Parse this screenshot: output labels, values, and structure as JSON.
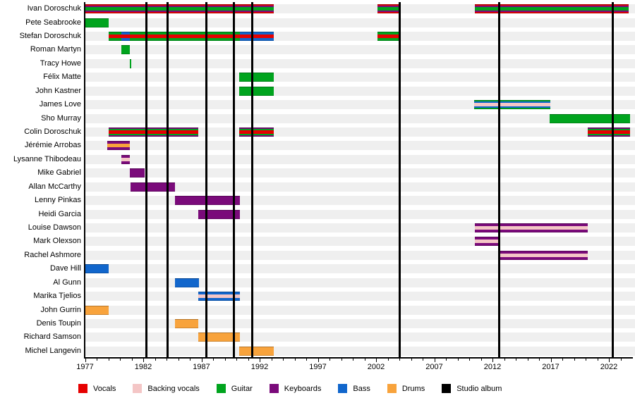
{
  "chart_data": {
    "type": "bar",
    "subtype": "band-members-gantt-timeline",
    "title": "",
    "xlabel": "",
    "ylabel": "",
    "x_axis": {
      "min": 1977,
      "max": 2023.8,
      "major_ticks": [
        1977,
        1982,
        1987,
        1992,
        1997,
        2002,
        2007,
        2012,
        2017,
        2022
      ],
      "minor_tick_interval": 1,
      "grid": false
    },
    "roles": {
      "vocals": "#e60000",
      "backing_vocals": "#f4c6c6",
      "guitar": "#00a41e",
      "keyboards": "#7a0a7a",
      "bass": "#1166cc",
      "drums": "#f8a33c",
      "studio_album": "#000000"
    },
    "members": [
      {
        "name": "Ivan Doroschuk",
        "bars": [
          {
            "start": 1977.0,
            "end": 1993.2,
            "stripes": [
              "vocals",
              "keyboards",
              "guitar"
            ]
          },
          {
            "start": 2002.1,
            "end": 2004.0,
            "stripes": [
              "vocals",
              "keyboards",
              "guitar"
            ]
          },
          {
            "start": 2010.5,
            "end": 2023.7,
            "stripes": [
              "vocals",
              "keyboards",
              "guitar"
            ]
          }
        ]
      },
      {
        "name": "Pete Seabrooke",
        "bars": [
          {
            "start": 1977.0,
            "end": 1979.0,
            "stripes": [
              "guitar"
            ]
          }
        ]
      },
      {
        "name": "Stefan Doroschuk",
        "bars": [
          {
            "start": 1979.0,
            "end": 1980.1,
            "stripes": [
              "guitar",
              "vocals"
            ]
          },
          {
            "start": 1980.1,
            "end": 1980.85,
            "stripes": [
              "bass",
              "vocals"
            ]
          },
          {
            "start": 1980.85,
            "end": 1990.3,
            "stripes": [
              "guitar",
              "vocals"
            ]
          },
          {
            "start": 1990.3,
            "end": 1993.2,
            "stripes": [
              "bass",
              "vocals"
            ]
          },
          {
            "start": 2002.1,
            "end": 2004.0,
            "stripes": [
              "guitar",
              "vocals"
            ]
          }
        ]
      },
      {
        "name": "Roman Martyn",
        "bars": [
          {
            "start": 1980.1,
            "end": 1980.85,
            "stripes": [
              "guitar"
            ]
          }
        ]
      },
      {
        "name": "Tracy Howe",
        "bars": [
          {
            "start": 1980.85,
            "end": 1981.0,
            "stripes": [
              "guitar"
            ]
          }
        ]
      },
      {
        "name": "Félix Matte",
        "bars": [
          {
            "start": 1990.25,
            "end": 1993.2,
            "stripes": [
              "guitar"
            ]
          }
        ]
      },
      {
        "name": "John Kastner",
        "bars": [
          {
            "start": 1990.25,
            "end": 1993.2,
            "stripes": [
              "guitar"
            ]
          }
        ]
      },
      {
        "name": "James Love",
        "bars": [
          {
            "start": 2010.4,
            "end": 2017.0,
            "stripes": [
              "guitar",
              "bass",
              "backing_vocals"
            ]
          }
        ]
      },
      {
        "name": "Sho Murray",
        "bars": [
          {
            "start": 2016.9,
            "end": 2023.8,
            "stripes": [
              "guitar"
            ]
          }
        ]
      },
      {
        "name": "Colin Doroschuk",
        "bars": [
          {
            "start": 1979.0,
            "end": 1986.7,
            "stripes": [
              "keyboards",
              "guitar",
              "vocals"
            ]
          },
          {
            "start": 1990.25,
            "end": 1993.2,
            "stripes": [
              "keyboards",
              "guitar",
              "vocals"
            ]
          },
          {
            "start": 2020.2,
            "end": 2023.8,
            "stripes": [
              "keyboards",
              "guitar",
              "vocals"
            ]
          }
        ]
      },
      {
        "name": "Jérémie Arrobas",
        "bars": [
          {
            "start": 1978.9,
            "end": 1980.85,
            "stripes": [
              "keyboards",
              "drums"
            ]
          }
        ]
      },
      {
        "name": "Lysanne Thibodeau",
        "bars": [
          {
            "start": 1980.1,
            "end": 1980.85,
            "stripes": [
              "keyboards",
              "backing_vocals"
            ]
          }
        ]
      },
      {
        "name": "Mike Gabriel",
        "bars": [
          {
            "start": 1980.85,
            "end": 1982.1,
            "stripes": [
              "keyboards"
            ]
          }
        ]
      },
      {
        "name": "Allan McCarthy",
        "bars": [
          {
            "start": 1980.9,
            "end": 1984.7,
            "stripes": [
              "keyboards"
            ]
          }
        ]
      },
      {
        "name": "Lenny Pinkas",
        "bars": [
          {
            "start": 1984.7,
            "end": 1990.3,
            "stripes": [
              "keyboards"
            ]
          }
        ]
      },
      {
        "name": "Heidi Garcia",
        "bars": [
          {
            "start": 1986.7,
            "end": 1990.3,
            "stripes": [
              "keyboards"
            ]
          }
        ]
      },
      {
        "name": "Louise Dawson",
        "bars": [
          {
            "start": 2010.5,
            "end": 2020.2,
            "stripes": [
              "keyboards",
              "backing_vocals"
            ]
          }
        ]
      },
      {
        "name": "Mark Olexson",
        "bars": [
          {
            "start": 2010.5,
            "end": 2012.55,
            "stripes": [
              "keyboards",
              "backing_vocals"
            ]
          }
        ]
      },
      {
        "name": "Rachel Ashmore",
        "bars": [
          {
            "start": 2012.5,
            "end": 2020.2,
            "stripes": [
              "keyboards",
              "backing_vocals"
            ]
          }
        ]
      },
      {
        "name": "Dave Hill",
        "bars": [
          {
            "start": 1977.0,
            "end": 1979.0,
            "stripes": [
              "bass"
            ]
          }
        ]
      },
      {
        "name": "Al Gunn",
        "bars": [
          {
            "start": 1984.7,
            "end": 1986.8,
            "stripes": [
              "bass"
            ]
          }
        ]
      },
      {
        "name": "Marika Tjelios",
        "bars": [
          {
            "start": 1986.7,
            "end": 1990.3,
            "stripes": [
              "bass",
              "backing_vocals"
            ]
          }
        ]
      },
      {
        "name": "John Gurrin",
        "bars": [
          {
            "start": 1977.0,
            "end": 1979.0,
            "stripes": [
              "drums"
            ]
          }
        ]
      },
      {
        "name": "Denis Toupin",
        "bars": [
          {
            "start": 1984.7,
            "end": 1986.7,
            "stripes": [
              "drums"
            ]
          }
        ]
      },
      {
        "name": "Richard Samson",
        "bars": [
          {
            "start": 1986.7,
            "end": 1990.3,
            "stripes": [
              "drums"
            ]
          }
        ]
      },
      {
        "name": "Michel Langevin",
        "bars": [
          {
            "start": 1990.25,
            "end": 1993.2,
            "stripes": [
              "drums"
            ]
          }
        ]
      }
    ],
    "album_lines": [
      1982.25,
      1984.1,
      1987.45,
      1989.8,
      1991.35,
      2004.0,
      2012.55,
      2022.35
    ],
    "legend": [
      {
        "label": "Vocals",
        "role": "vocals"
      },
      {
        "label": "Backing vocals",
        "role": "backing_vocals"
      },
      {
        "label": "Guitar",
        "role": "guitar"
      },
      {
        "label": "Keyboards",
        "role": "keyboards"
      },
      {
        "label": "Bass",
        "role": "bass"
      },
      {
        "label": "Drums",
        "role": "drums"
      },
      {
        "label": "Studio album",
        "role": "studio_album"
      }
    ]
  }
}
